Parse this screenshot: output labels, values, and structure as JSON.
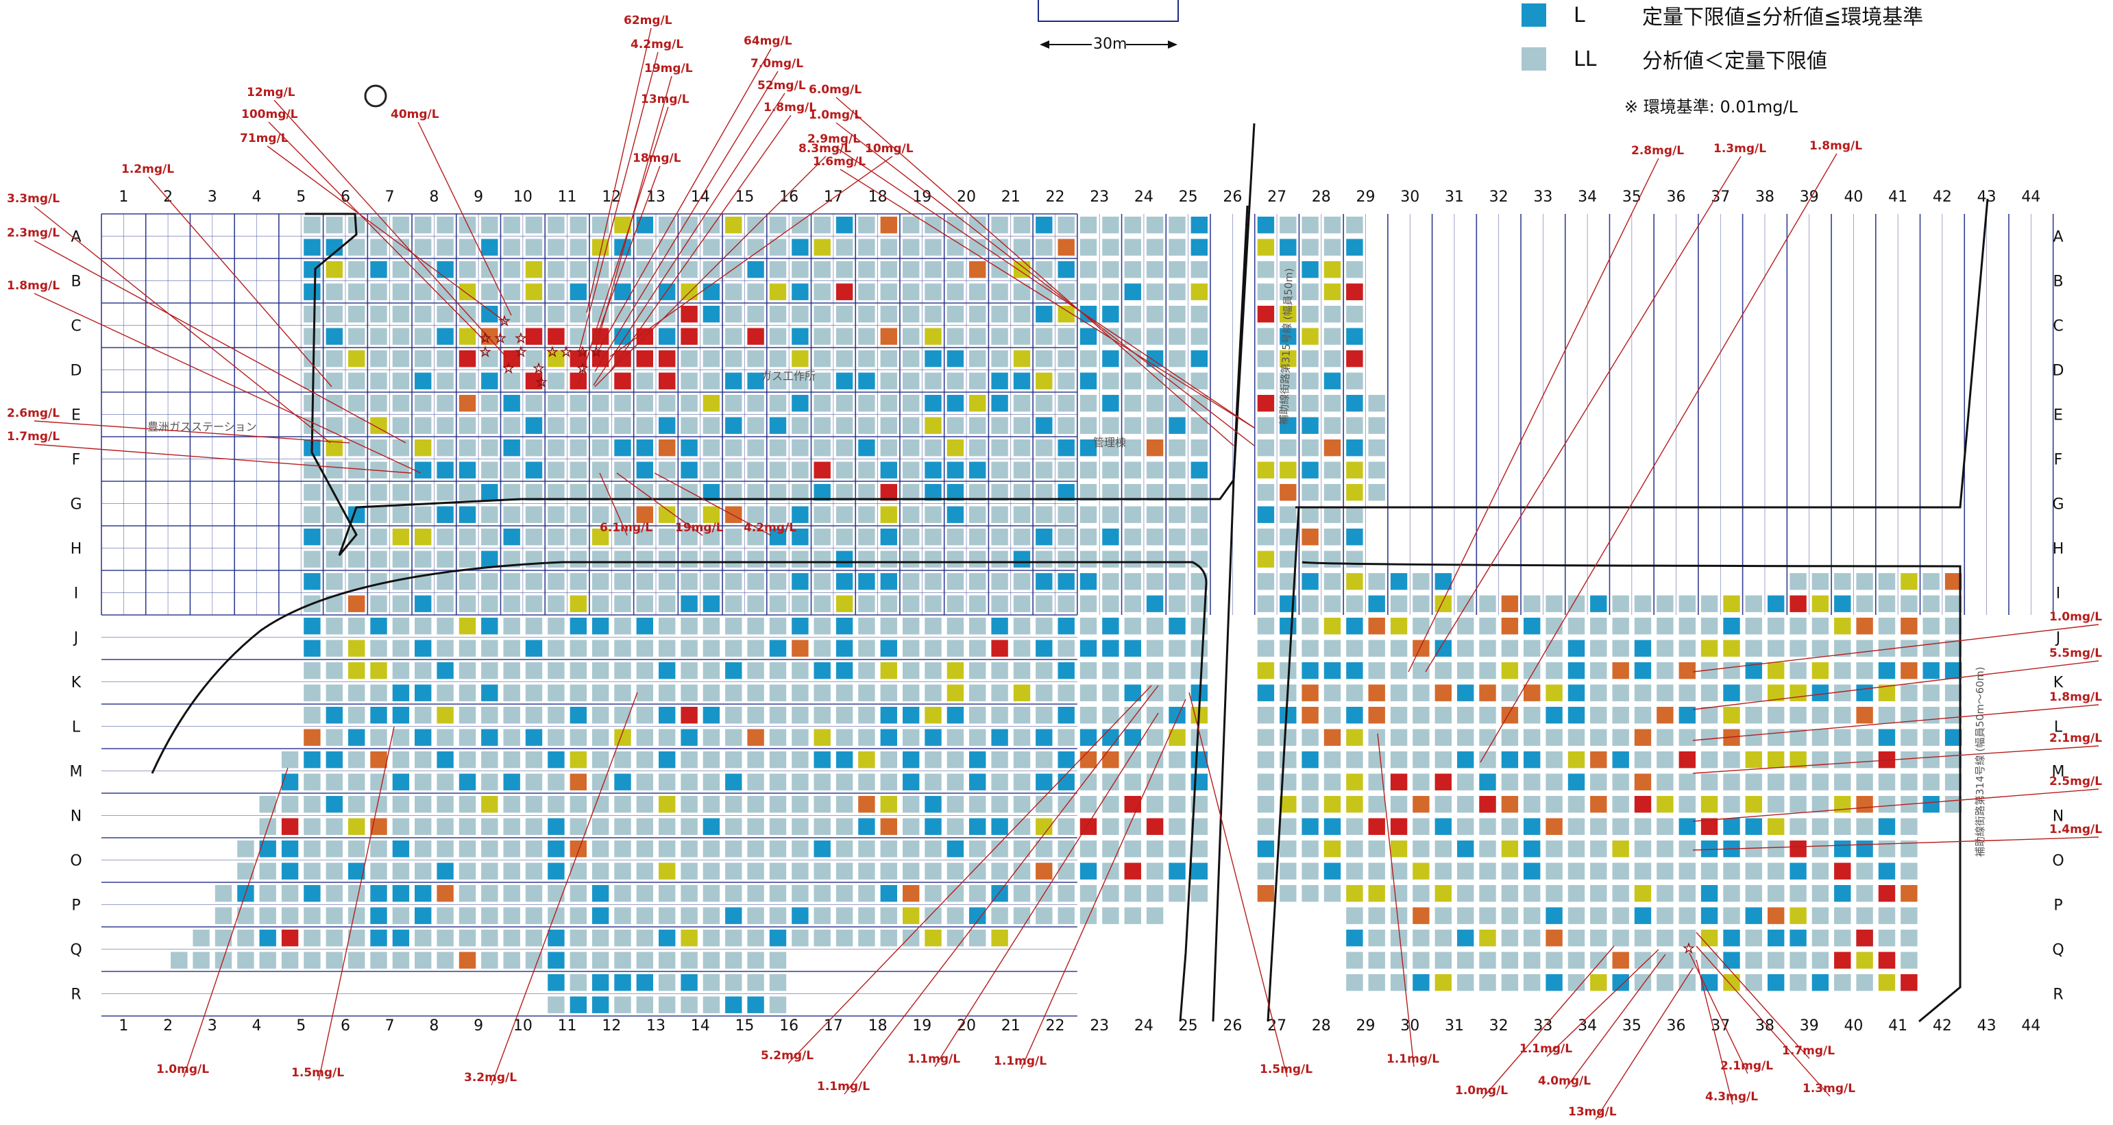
{
  "legend": {
    "items": [
      {
        "code": "L",
        "label": "定量下限値≦分析値≦環境基準",
        "color": "#1895c8"
      },
      {
        "code": "LL",
        "label": "分析値＜定量下限値",
        "color": "#a9c7cf"
      }
    ],
    "note": "※  環境基準:  0.01mg/L"
  },
  "scale_label": "30m",
  "map_labels": {
    "station": "豊洲ガスステーション",
    "building1": "ガス工作所",
    "building2": "管理棟",
    "road_a": "補助線街路第315号線 (幅員50m)",
    "road_b": "補助線街路第314号線 (幅員50m〜60m)"
  },
  "columns": [
    "1",
    "2",
    "3",
    "4",
    "5",
    "6",
    "7",
    "8",
    "9",
    "10",
    "11",
    "12",
    "13",
    "14",
    "15",
    "16",
    "17",
    "18",
    "19",
    "20",
    "21",
    "22",
    "23",
    "24",
    "25",
    "26",
    "27",
    "28",
    "29",
    "30",
    "31",
    "32",
    "33",
    "34",
    "35",
    "36",
    "37",
    "38",
    "39",
    "40",
    "41",
    "42",
    "43",
    "44"
  ],
  "rows": [
    "A",
    "B",
    "C",
    "D",
    "E",
    "F",
    "G",
    "H",
    "I",
    "J",
    "K",
    "L",
    "M",
    "N",
    "O",
    "P",
    "Q",
    "R"
  ],
  "colors": {
    "grid": "#1d2a86",
    "LL": "#a9c7cf",
    "L": "#1895c8",
    "level_yellow": "#c8c51a",
    "level_orange": "#d4692c",
    "level_red": "#cc1e1e",
    "callout": "#b71c1c",
    "outline": "#111111"
  },
  "callouts": [
    {
      "t": "62mg/L"
    },
    {
      "t": "4.2mg/L"
    },
    {
      "t": "19mg/L"
    },
    {
      "t": "13mg/L"
    },
    {
      "t": "64mg/L"
    },
    {
      "t": "7.0mg/L"
    },
    {
      "t": "52mg/L"
    },
    {
      "t": "1.8mg/L"
    },
    {
      "t": "12mg/L"
    },
    {
      "t": "100mg/L"
    },
    {
      "t": "71mg/L"
    },
    {
      "t": "40mg/L"
    },
    {
      "t": "18mg/L"
    },
    {
      "t": "8.3mg/L"
    },
    {
      "t": "10mg/L"
    },
    {
      "t": "1.2mg/L"
    },
    {
      "t": "3.3mg/L"
    },
    {
      "t": "2.3mg/L"
    },
    {
      "t": "1.8mg/L"
    },
    {
      "t": "2.6mg/L"
    },
    {
      "t": "1.7mg/L"
    },
    {
      "t": "6.1mg/L"
    },
    {
      "t": "19mg/L"
    },
    {
      "t": "4.2mg/L"
    },
    {
      "t": "6.0mg/L"
    },
    {
      "t": "1.0mg/L"
    },
    {
      "t": "2.9mg/L"
    },
    {
      "t": "1.6mg/L"
    },
    {
      "t": "2.8mg/L"
    },
    {
      "t": "1.3mg/L"
    },
    {
      "t": "1.8mg/L"
    },
    {
      "t": "1.0mg/L"
    },
    {
      "t": "5.5mg/L"
    },
    {
      "t": "1.8mg/L"
    },
    {
      "t": "2.1mg/L"
    },
    {
      "t": "2.5mg/L"
    },
    {
      "t": "1.4mg/L"
    },
    {
      "t": "1.0mg/L"
    },
    {
      "t": "1.5mg/L"
    },
    {
      "t": "3.2mg/L"
    },
    {
      "t": "5.2mg/L"
    },
    {
      "t": "1.1mg/L"
    },
    {
      "t": "1.1mg/L"
    },
    {
      "t": "1.1mg/L"
    },
    {
      "t": "1.5mg/L"
    },
    {
      "t": "1.1mg/L"
    },
    {
      "t": "1.0mg/L"
    },
    {
      "t": "1.1mg/L"
    },
    {
      "t": "4.0mg/L"
    },
    {
      "t": "13mg/L"
    },
    {
      "t": "4.3mg/L"
    },
    {
      "t": "2.1mg/L"
    },
    {
      "t": "1.3mg/L"
    },
    {
      "t": "1.7mg/L"
    }
  ]
}
